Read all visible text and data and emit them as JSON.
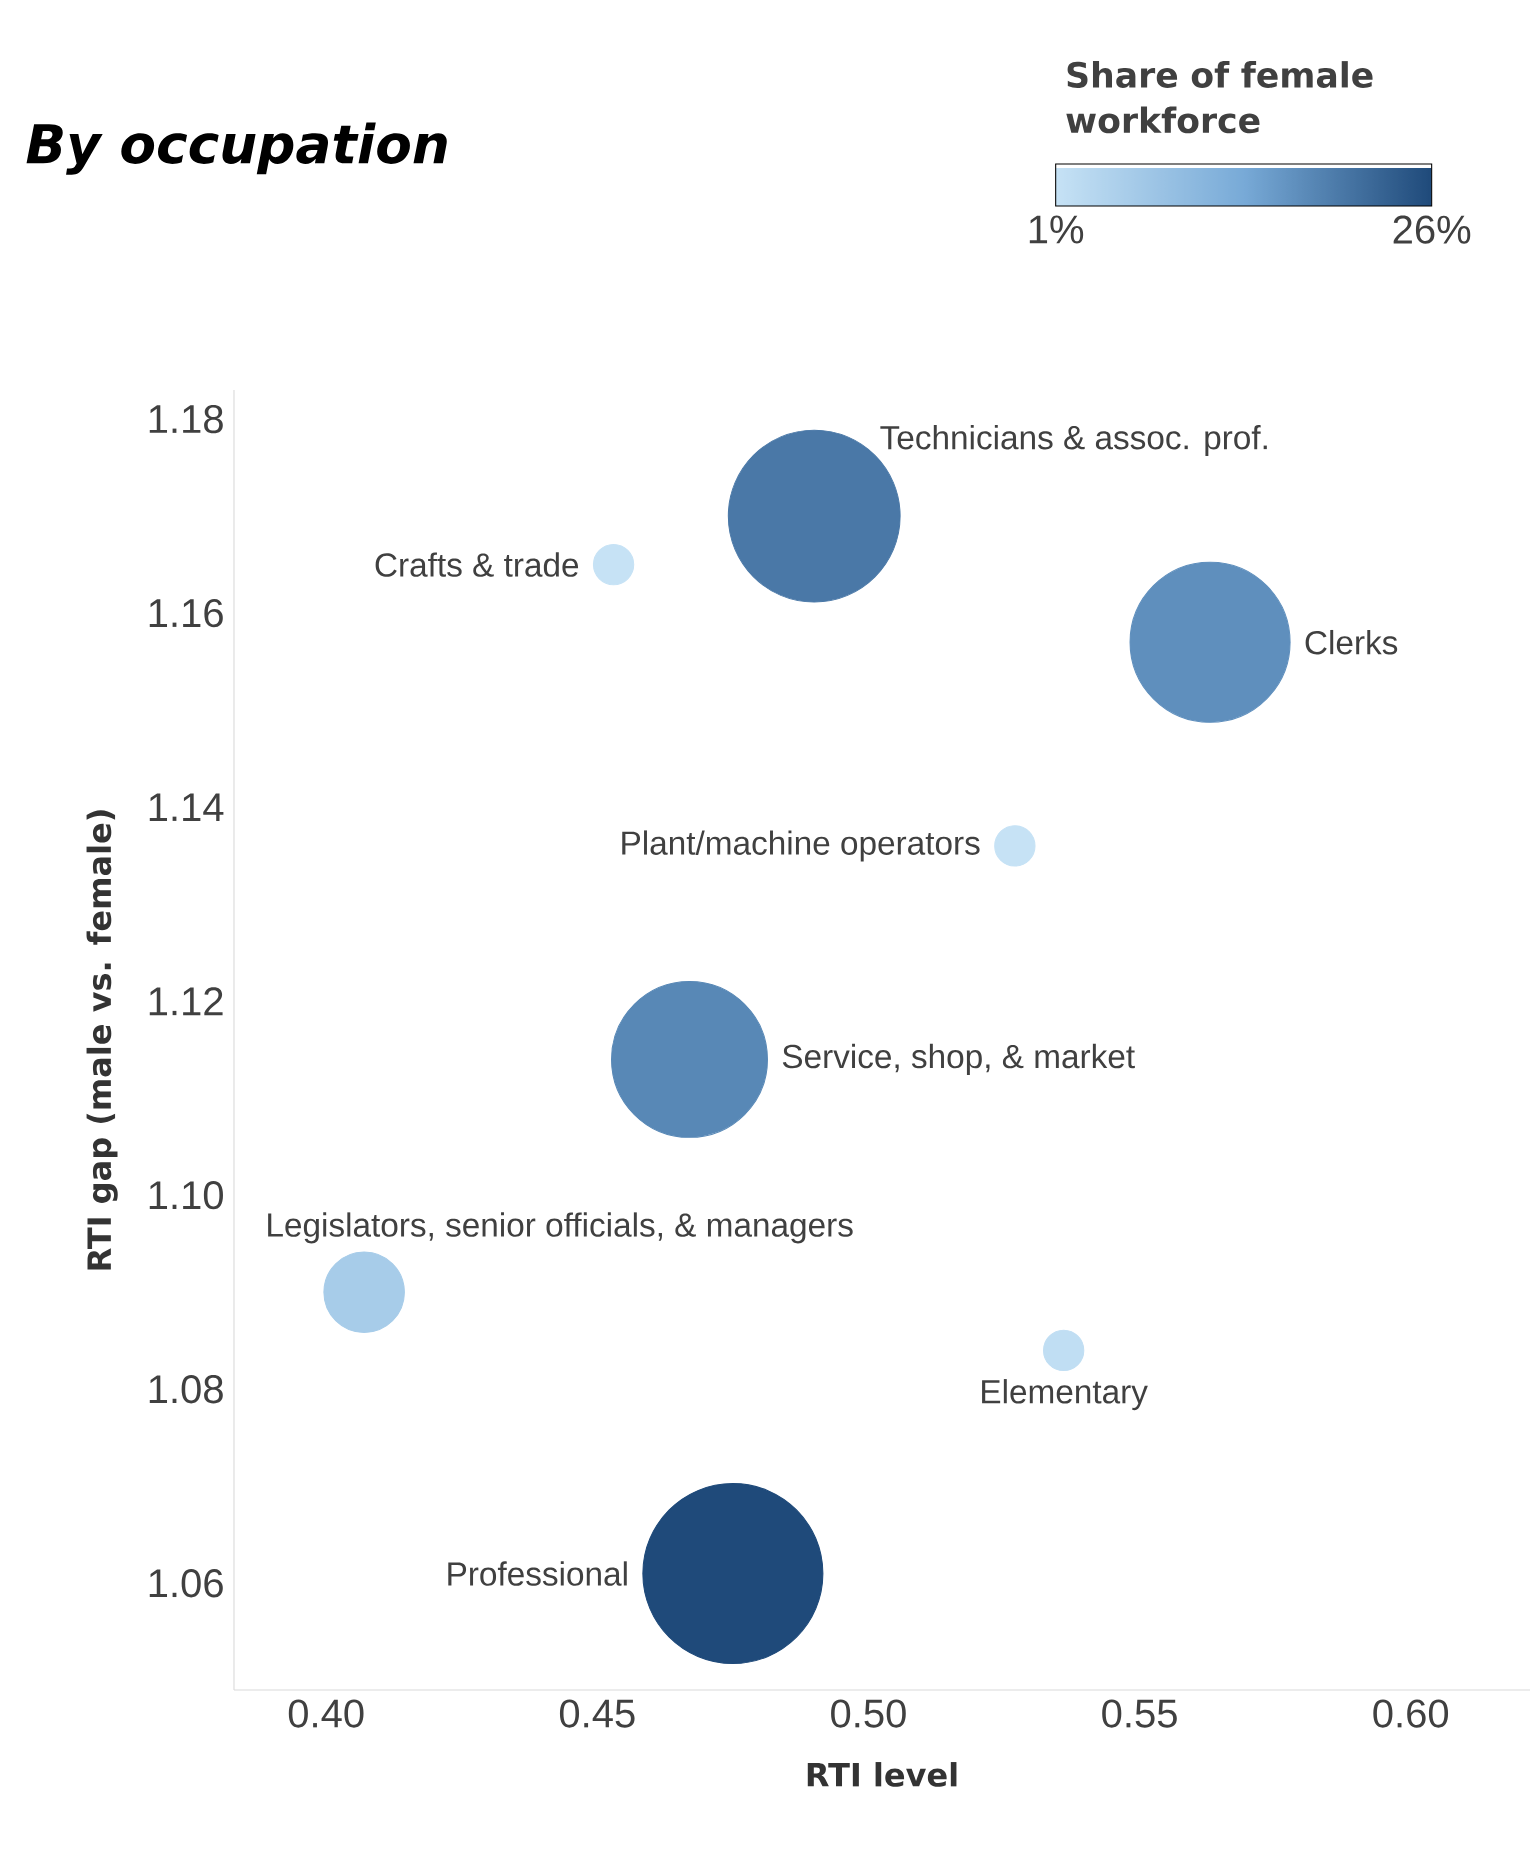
{
  "chart_data": {
    "type": "bubble",
    "title": "By occupation",
    "xlabel": "RTI level",
    "ylabel": "RTI gap (male vs. female)",
    "clabel": "Share of female workforce",
    "clim": [
      1,
      26
    ],
    "cticks": [
      {
        "value": 1,
        "label": "1%"
      },
      {
        "value": 26,
        "label": "26%"
      }
    ],
    "xlim": [
      0.383,
      0.622
    ],
    "ylim": [
      1.049,
      1.183
    ],
    "xticks": [
      {
        "value": 0.4,
        "label": "0.40"
      },
      {
        "value": 0.45,
        "label": "0.45"
      },
      {
        "value": 0.5,
        "label": "0.50"
      },
      {
        "value": 0.55,
        "label": "0.55"
      },
      {
        "value": 0.6,
        "label": "0.60"
      }
    ],
    "yticks": [
      {
        "value": 1.06,
        "label": "1.06"
      },
      {
        "value": 1.08,
        "label": "1.08"
      },
      {
        "value": 1.1,
        "label": "1.10"
      },
      {
        "value": 1.12,
        "label": "1.12"
      },
      {
        "value": 1.14,
        "label": "1.14"
      },
      {
        "value": 1.16,
        "label": "1.16"
      },
      {
        "value": 1.18,
        "label": "1.18"
      }
    ],
    "marker": "circle",
    "grid": false,
    "legend": "top right",
    "series": [
      {
        "name": "Technicians & assoc. prof.",
        "x": [
          0.49
        ],
        "values": [
          1.17
        ],
        "sizes": [
          0.91
        ],
        "cvalues": [
          20
        ]
      },
      {
        "name": "Crafts & trade",
        "x": [
          0.453
        ],
        "values": [
          1.165
        ],
        "sizes": [
          0.05
        ],
        "cvalues": [
          1
        ]
      },
      {
        "name": "Clerks",
        "x": [
          0.563
        ],
        "values": [
          1.157
        ],
        "sizes": [
          0.79
        ],
        "cvalues": [
          17
        ]
      },
      {
        "name": "Plant/machine operators",
        "x": [
          0.527
        ],
        "values": [
          1.136
        ],
        "sizes": [
          0.05
        ],
        "cvalues": [
          1
        ]
      },
      {
        "name": "Service, shop, & market",
        "x": [
          0.467
        ],
        "values": [
          1.114
        ],
        "sizes": [
          0.75
        ],
        "cvalues": [
          18
        ]
      },
      {
        "name": "Legislators, senior officials, & managers",
        "x": [
          0.407
        ],
        "values": [
          1.09
        ],
        "sizes": [
          0.2
        ],
        "cvalues": [
          6
        ]
      },
      {
        "name": "Elementary",
        "x": [
          0.536
        ],
        "values": [
          1.084
        ],
        "sizes": [
          0.05
        ],
        "cvalues": [
          2
        ]
      },
      {
        "name": "Professional",
        "x": [
          0.475
        ],
        "values": [
          1.061
        ],
        "sizes": [
          1
        ],
        "cvalues": [
          26
        ]
      }
    ]
  }
}
